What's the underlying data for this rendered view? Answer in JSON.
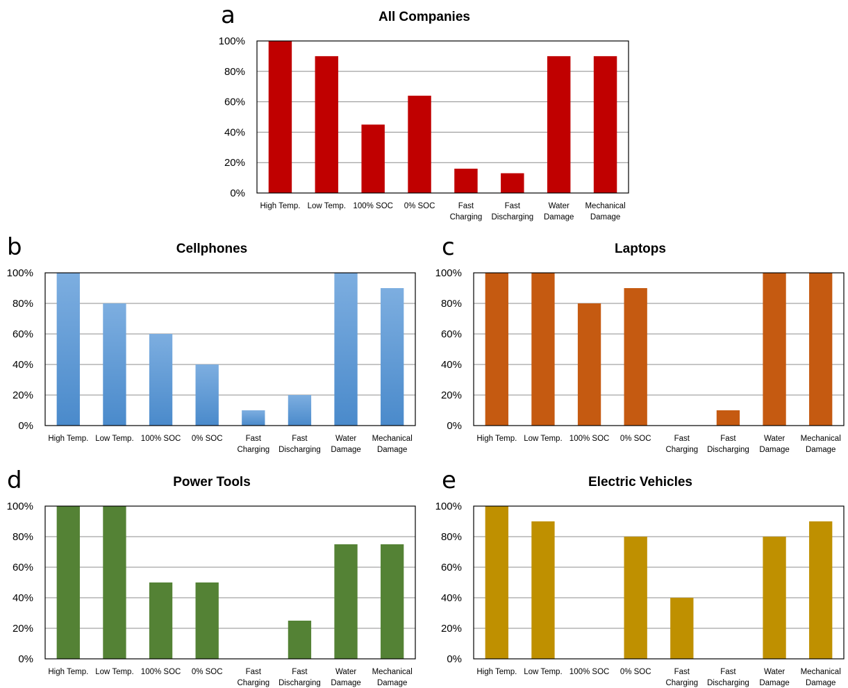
{
  "chart_data": [
    {
      "type": "bar",
      "panel": "a",
      "title": "All Companies",
      "color": "#C00000",
      "categories": [
        "High Temp.",
        "Low Temp.",
        "100% SOC",
        "0% SOC",
        "Fast Charging",
        "Fast Discharging",
        "Water Damage",
        "Mechanical Damage"
      ],
      "category_lines": [
        [
          "High Temp."
        ],
        [
          "Low Temp."
        ],
        [
          "100% SOC"
        ],
        [
          "0% SOC"
        ],
        [
          "Fast",
          "Charging"
        ],
        [
          "Fast",
          "Discharging"
        ],
        [
          "Water",
          "Damage"
        ],
        [
          "Mechanical",
          "Damage"
        ]
      ],
      "values": [
        100,
        90,
        45,
        64,
        16,
        13,
        90,
        90
      ],
      "ylim": [
        0,
        100
      ],
      "yticks": [
        "0%",
        "20%",
        "40%",
        "60%",
        "80%",
        "100%"
      ],
      "grid": true
    },
    {
      "type": "bar",
      "panel": "b",
      "title": "Cellphones",
      "color": "#5B9BD5",
      "color_top": "#7DAEE0",
      "color_bottom": "#4A8ACB",
      "categories": [
        "High Temp.",
        "Low Temp.",
        "100% SOC",
        "0% SOC",
        "Fast Charging",
        "Fast Discharging",
        "Water Damage",
        "Mechanical Damage"
      ],
      "category_lines": [
        [
          "High Temp."
        ],
        [
          "Low Temp."
        ],
        [
          "100% SOC"
        ],
        [
          "0% SOC"
        ],
        [
          "Fast",
          "Charging"
        ],
        [
          "Fast",
          "Discharging"
        ],
        [
          "Water",
          "Damage"
        ],
        [
          "Mechanical",
          "Damage"
        ]
      ],
      "values": [
        100,
        80,
        60,
        40,
        10,
        20,
        100,
        90
      ],
      "ylim": [
        0,
        100
      ],
      "yticks": [
        "0%",
        "20%",
        "40%",
        "60%",
        "80%",
        "100%"
      ],
      "grid": true
    },
    {
      "type": "bar",
      "panel": "c",
      "title": "Laptops",
      "color": "#C55A11",
      "categories": [
        "High Temp.",
        "Low Temp.",
        "100% SOC",
        "0% SOC",
        "Fast Charging",
        "Fast Discharging",
        "Water Damage",
        "Mechanical Damage"
      ],
      "category_lines": [
        [
          "High Temp."
        ],
        [
          "Low Temp."
        ],
        [
          "100% SOC"
        ],
        [
          "0% SOC"
        ],
        [
          "Fast",
          "Charging"
        ],
        [
          "Fast",
          "Discharging"
        ],
        [
          "Water",
          "Damage"
        ],
        [
          "Mechanical",
          "Damage"
        ]
      ],
      "values": [
        100,
        100,
        80,
        90,
        0,
        10,
        100,
        100
      ],
      "ylim": [
        0,
        100
      ],
      "yticks": [
        "0%",
        "20%",
        "40%",
        "60%",
        "80%",
        "100%"
      ],
      "grid": true
    },
    {
      "type": "bar",
      "panel": "d",
      "title": "Power Tools",
      "color": "#548235",
      "categories": [
        "High Temp.",
        "Low Temp.",
        "100% SOC",
        "0% SOC",
        "Fast Charging",
        "Fast Discharging",
        "Water Damage",
        "Mechanical Damage"
      ],
      "category_lines": [
        [
          "High Temp."
        ],
        [
          "Low Temp."
        ],
        [
          "100% SOC"
        ],
        [
          "0% SOC"
        ],
        [
          "Fast",
          "Charging"
        ],
        [
          "Fast",
          "Discharging"
        ],
        [
          "Water",
          "Damage"
        ],
        [
          "Mechanical",
          "Damage"
        ]
      ],
      "values": [
        100,
        100,
        50,
        50,
        0,
        25,
        75,
        75
      ],
      "ylim": [
        0,
        100
      ],
      "yticks": [
        "0%",
        "20%",
        "40%",
        "60%",
        "80%",
        "100%"
      ],
      "grid": true
    },
    {
      "type": "bar",
      "panel": "e",
      "title": "Electric Vehicles",
      "color": "#BF9000",
      "categories": [
        "High Temp.",
        "Low Temp.",
        "100% SOC",
        "0% SOC",
        "Fast Charging",
        "Fast Discharging",
        "Water Damage",
        "Mechanical Damage"
      ],
      "category_lines": [
        [
          "High Temp."
        ],
        [
          "Low Temp."
        ],
        [
          "100% SOC"
        ],
        [
          "0% SOC"
        ],
        [
          "Fast",
          "Charging"
        ],
        [
          "Fast",
          "Discharging"
        ],
        [
          "Water",
          "Damage"
        ],
        [
          "Mechanical",
          "Damage"
        ]
      ],
      "values": [
        100,
        90,
        0,
        80,
        40,
        0,
        80,
        90
      ],
      "ylim": [
        0,
        100
      ],
      "yticks": [
        "0%",
        "20%",
        "40%",
        "60%",
        "80%",
        "100%"
      ],
      "grid": true
    }
  ]
}
